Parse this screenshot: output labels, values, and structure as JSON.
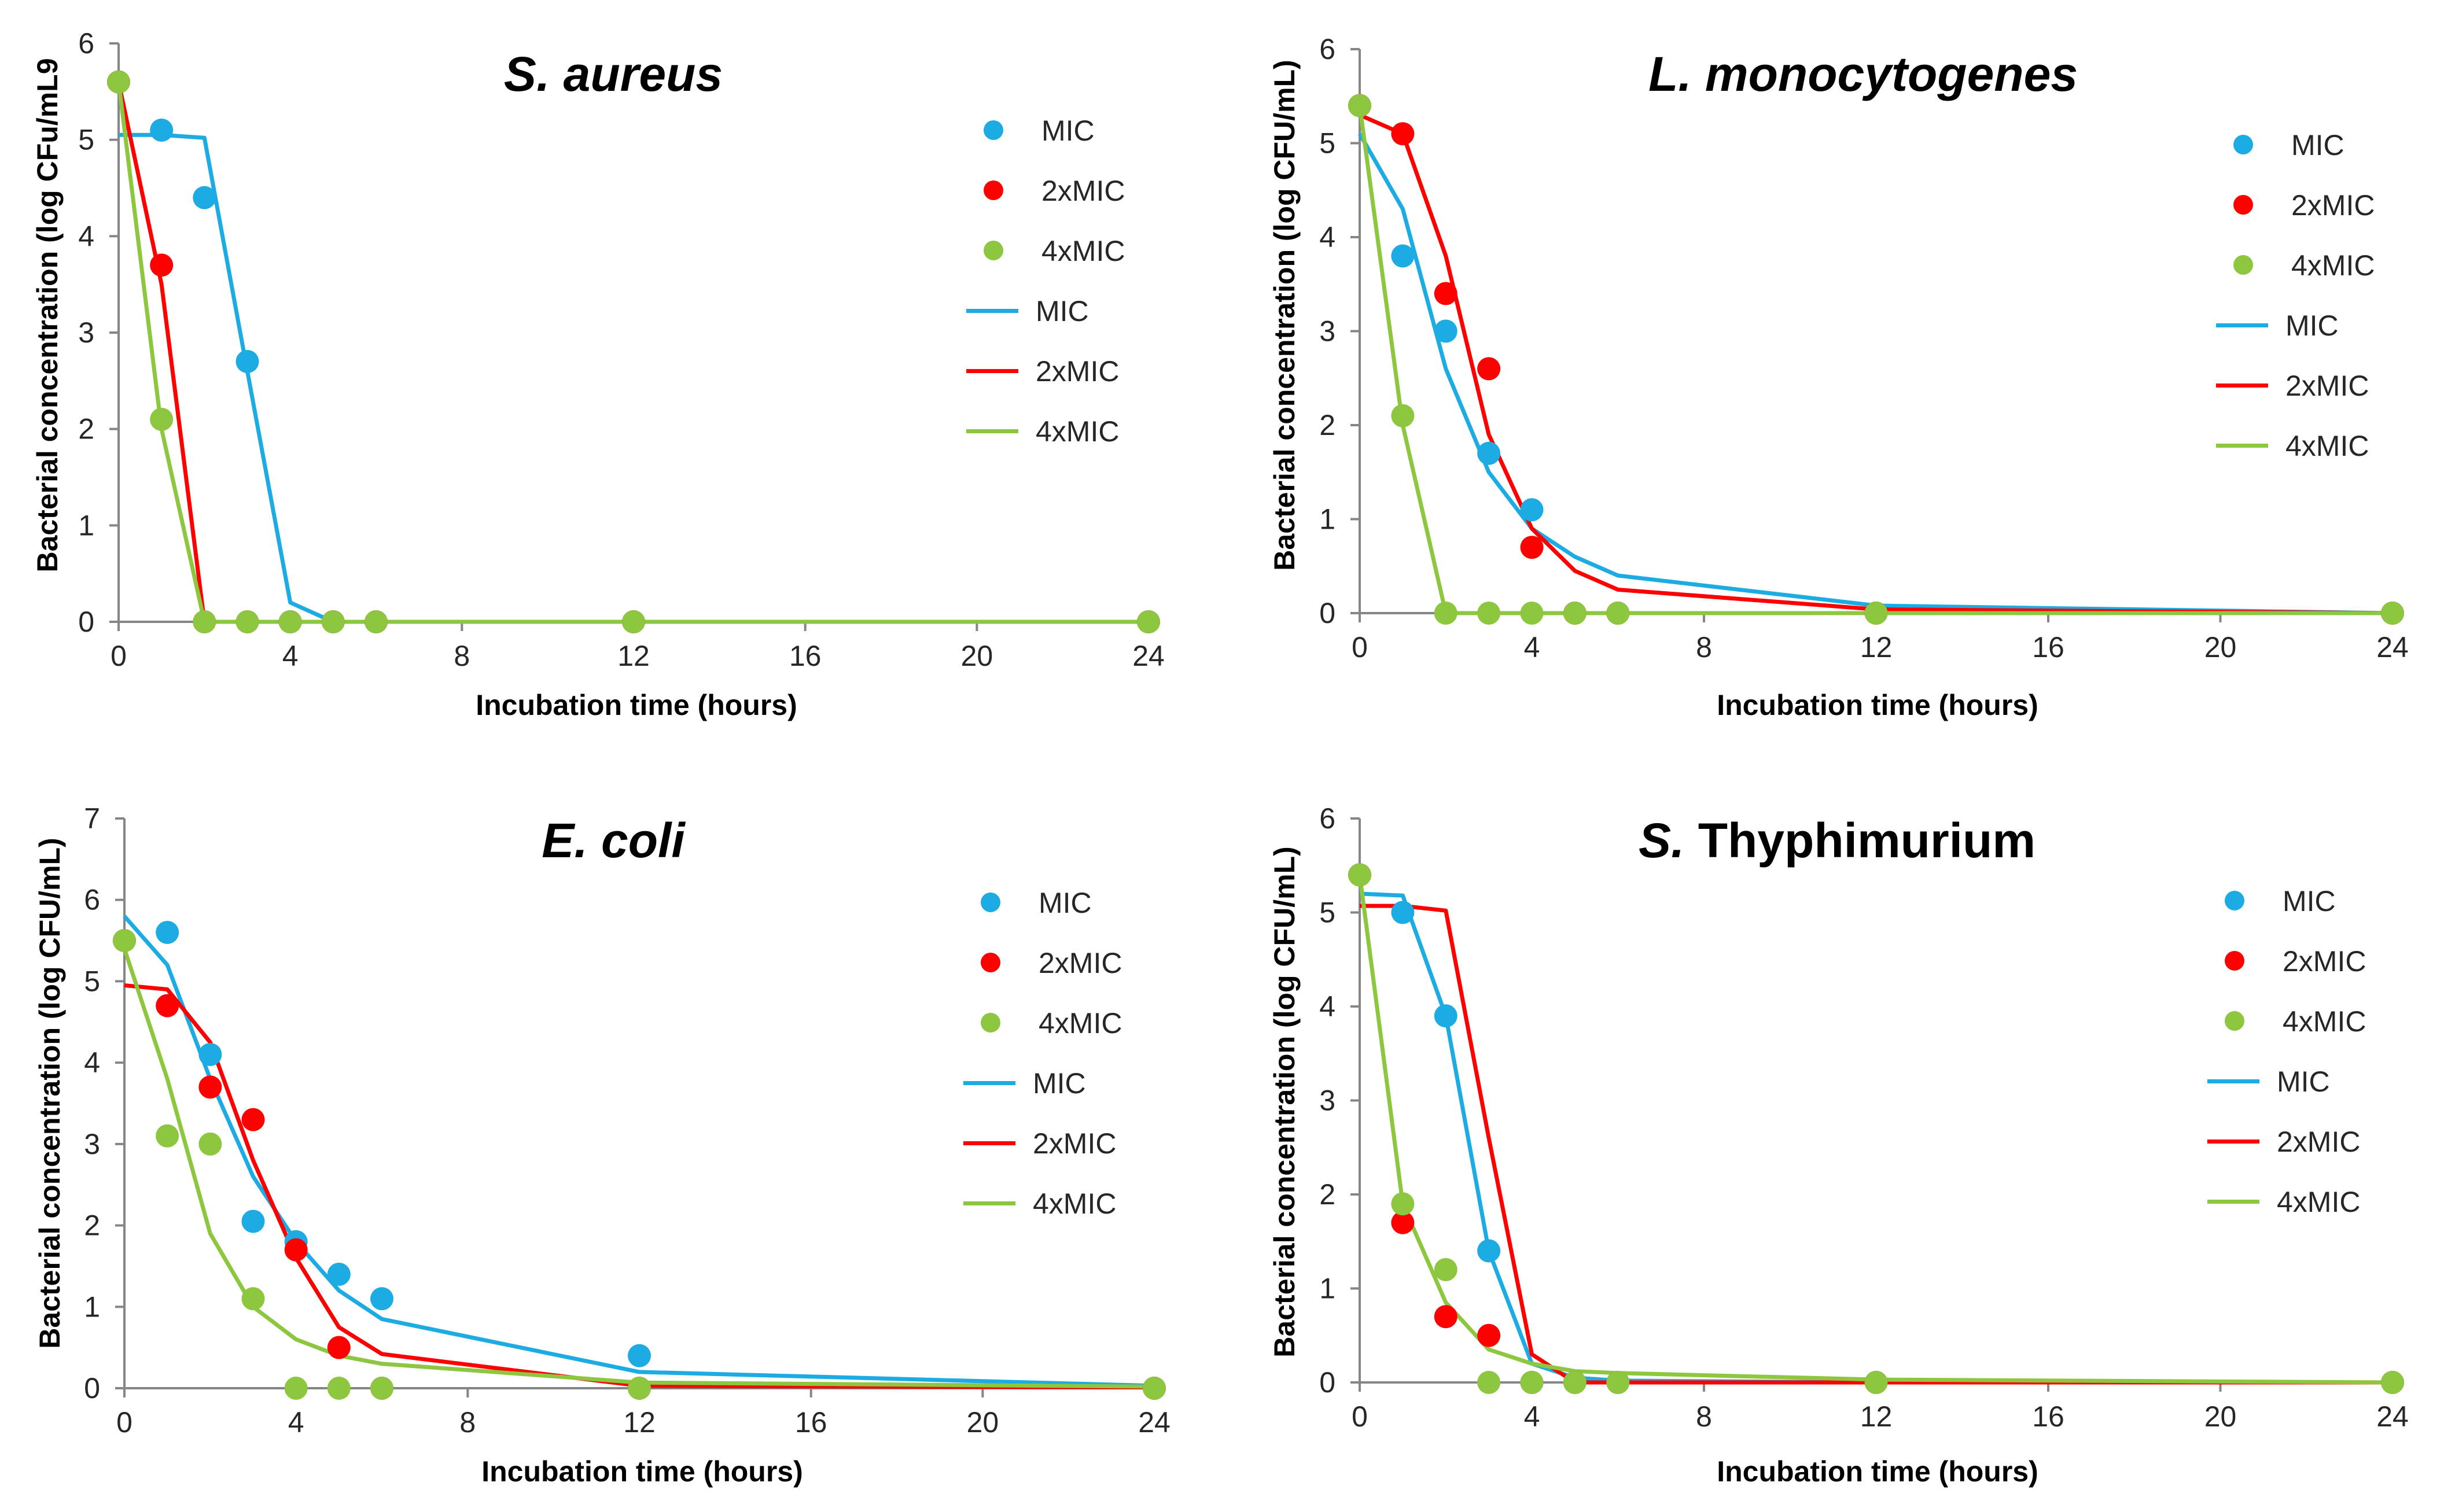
{
  "colors": {
    "MIC": "#1cabe2",
    "2xMIC": "#ff0000",
    "4xMIC": "#8dc63f"
  },
  "chart_data": [
    {
      "type": "line+scatter",
      "title_italic": "S. aureus",
      "title_normal": "",
      "xlabel": "Incubation time (hours)",
      "ylabel": "Bacterial concentration (log CFu/mL9",
      "xlim": [
        0,
        24
      ],
      "ylim": [
        0,
        6
      ],
      "xticks": [
        0,
        4,
        8,
        12,
        16,
        20,
        24
      ],
      "yticks": [
        0,
        1,
        2,
        3,
        4,
        5,
        6
      ],
      "legend": [
        "MIC",
        "2xMIC",
        "4xMIC",
        "MIC",
        "2xMIC",
        "4xMIC"
      ],
      "series": [
        {
          "name": "MIC",
          "kind": "points",
          "x": [
            0,
            1,
            2,
            3,
            4,
            5,
            6,
            12,
            24
          ],
          "y": [
            5.6,
            5.1,
            4.4,
            2.7,
            0,
            0,
            0,
            0,
            0
          ]
        },
        {
          "name": "2xMIC",
          "kind": "points",
          "x": [
            0,
            1,
            2,
            3,
            4,
            5,
            6,
            12,
            24
          ],
          "y": [
            5.6,
            3.7,
            0,
            0,
            0,
            0,
            0,
            0,
            0
          ]
        },
        {
          "name": "4xMIC",
          "kind": "points",
          "x": [
            0,
            1,
            2,
            3,
            4,
            5,
            6,
            12,
            24
          ],
          "y": [
            5.6,
            2.1,
            0,
            0,
            0,
            0,
            0,
            0,
            0
          ]
        },
        {
          "name": "MIC",
          "kind": "line",
          "x": [
            0,
            1,
            2,
            3,
            4,
            5,
            6,
            12,
            24
          ],
          "y": [
            5.05,
            5.05,
            5.02,
            2.6,
            0.2,
            0,
            0,
            0,
            0
          ]
        },
        {
          "name": "2xMIC",
          "kind": "line",
          "x": [
            0,
            1,
            2,
            3,
            4,
            5,
            6,
            12,
            24
          ],
          "y": [
            5.6,
            3.5,
            0,
            0,
            0,
            0,
            0,
            0,
            0
          ]
        },
        {
          "name": "4xMIC",
          "kind": "line",
          "x": [
            0,
            1,
            2,
            3,
            4,
            5,
            6,
            12,
            24
          ],
          "y": [
            5.6,
            2.0,
            0,
            0,
            0,
            0,
            0,
            0,
            0
          ]
        }
      ]
    },
    {
      "type": "line+scatter",
      "title_italic": "L. monocytogenes",
      "title_normal": "",
      "xlabel": "Incubation time (hours)",
      "ylabel": "Bacterial concentration (log CFU/mL)",
      "xlim": [
        0,
        24
      ],
      "ylim": [
        0,
        6
      ],
      "xticks": [
        0,
        4,
        8,
        12,
        16,
        20,
        24
      ],
      "yticks": [
        0,
        1,
        2,
        3,
        4,
        5,
        6
      ],
      "legend": [
        "MIC",
        "2xMIC",
        "4xMIC",
        "MIC",
        "2xMIC",
        "4xMIC"
      ],
      "series": [
        {
          "name": "MIC",
          "kind": "points",
          "x": [
            0,
            1,
            2,
            3,
            4,
            5,
            6,
            12,
            24
          ],
          "y": [
            5.4,
            3.8,
            3.0,
            1.7,
            1.1,
            0,
            0,
            0,
            0
          ]
        },
        {
          "name": "2xMIC",
          "kind": "points",
          "x": [
            0,
            1,
            2,
            3,
            4,
            5,
            6,
            12,
            24
          ],
          "y": [
            5.4,
            5.1,
            3.4,
            2.6,
            0.7,
            0,
            0,
            0,
            0
          ]
        },
        {
          "name": "4xMIC",
          "kind": "points",
          "x": [
            0,
            1,
            2,
            3,
            4,
            5,
            6,
            12,
            24
          ],
          "y": [
            5.4,
            2.1,
            0,
            0,
            0,
            0,
            0,
            0,
            0
          ]
        },
        {
          "name": "MIC",
          "kind": "line",
          "x": [
            0,
            1,
            2,
            3,
            4,
            5,
            6,
            12,
            24
          ],
          "y": [
            5.1,
            4.3,
            2.6,
            1.5,
            0.9,
            0.6,
            0.4,
            0.08,
            0
          ]
        },
        {
          "name": "2xMIC",
          "kind": "line",
          "x": [
            0,
            1,
            2,
            3,
            4,
            5,
            6,
            12,
            24
          ],
          "y": [
            5.3,
            5.1,
            3.8,
            1.9,
            0.9,
            0.45,
            0.25,
            0.04,
            0
          ]
        },
        {
          "name": "4xMIC",
          "kind": "line",
          "x": [
            0,
            1,
            2,
            3,
            4,
            5,
            6,
            12,
            24
          ],
          "y": [
            5.4,
            2.0,
            0,
            0,
            0,
            0,
            0,
            0,
            0
          ]
        }
      ]
    },
    {
      "type": "line+scatter",
      "title_italic": "E. coli",
      "title_normal": "",
      "xlabel": "Incubation time (hours)",
      "ylabel": "Bacterial concentration (log CFU/mL)",
      "xlim": [
        0,
        24
      ],
      "ylim": [
        0,
        7
      ],
      "xticks": [
        0,
        4,
        8,
        12,
        16,
        20,
        24
      ],
      "yticks": [
        0,
        1,
        2,
        3,
        4,
        5,
        6,
        7
      ],
      "legend": [
        "MIC",
        "2xMIC",
        "4xMIC",
        "MIC",
        "2xMIC",
        "4xMIC"
      ],
      "series": [
        {
          "name": "MIC",
          "kind": "points",
          "x": [
            0,
            1,
            2,
            3,
            4,
            5,
            6,
            12,
            24
          ],
          "y": [
            5.5,
            5.6,
            4.1,
            2.05,
            1.8,
            1.4,
            1.1,
            0.4,
            0
          ]
        },
        {
          "name": "2xMIC",
          "kind": "points",
          "x": [
            0,
            1,
            2,
            3,
            4,
            5,
            6,
            12,
            24
          ],
          "y": [
            5.5,
            4.7,
            3.7,
            3.3,
            1.7,
            0.5,
            0,
            0,
            0
          ]
        },
        {
          "name": "4xMIC",
          "kind": "points",
          "x": [
            0,
            1,
            2,
            3,
            4,
            5,
            6,
            12,
            24
          ],
          "y": [
            5.5,
            3.1,
            3.0,
            1.1,
            0,
            0,
            0,
            0,
            0
          ]
        },
        {
          "name": "MIC",
          "kind": "line",
          "x": [
            0,
            1,
            2,
            3,
            4,
            5,
            6,
            12,
            24
          ],
          "y": [
            5.8,
            5.2,
            3.8,
            2.6,
            1.8,
            1.2,
            0.85,
            0.2,
            0.03
          ]
        },
        {
          "name": "2xMIC",
          "kind": "line",
          "x": [
            0,
            1,
            2,
            3,
            4,
            5,
            6,
            12,
            24
          ],
          "y": [
            4.95,
            4.9,
            4.25,
            2.8,
            1.6,
            0.75,
            0.42,
            0.03,
            0.01
          ]
        },
        {
          "name": "4xMIC",
          "kind": "line",
          "x": [
            0,
            1,
            2,
            3,
            4,
            5,
            6,
            12,
            24
          ],
          "y": [
            5.4,
            3.8,
            1.9,
            1.0,
            0.6,
            0.4,
            0.3,
            0.07,
            0.02
          ]
        }
      ]
    },
    {
      "type": "line+scatter",
      "title_italic": "S.",
      "title_normal": " Thyphimurium",
      "xlabel": "Incubation time (hours)",
      "ylabel": "Bacterial concentration (log CFU/mL)",
      "xlim": [
        0,
        24
      ],
      "ylim": [
        0,
        6
      ],
      "xticks": [
        0,
        4,
        8,
        12,
        16,
        20,
        24
      ],
      "yticks": [
        0,
        1,
        2,
        3,
        4,
        5,
        6
      ],
      "legend": [
        "MIC",
        "2xMIC",
        "4xMIC",
        "MIC",
        "2xMIC",
        "4xMIC"
      ],
      "series": [
        {
          "name": "MIC",
          "kind": "points",
          "x": [
            0,
            1,
            2,
            3,
            4,
            5,
            6,
            12,
            24
          ],
          "y": [
            5.4,
            5.0,
            3.9,
            1.4,
            0,
            0,
            0,
            0,
            0
          ]
        },
        {
          "name": "2xMIC",
          "kind": "points",
          "x": [
            0,
            1,
            2,
            3,
            4,
            5,
            6,
            12,
            24
          ],
          "y": [
            5.4,
            1.7,
            0.7,
            0.5,
            0,
            0,
            0,
            0,
            0
          ]
        },
        {
          "name": "4xMIC",
          "kind": "points",
          "x": [
            0,
            1,
            2,
            3,
            4,
            5,
            6,
            12,
            24
          ],
          "y": [
            5.4,
            1.9,
            1.2,
            0,
            0,
            0,
            0,
            0,
            0
          ]
        },
        {
          "name": "MIC",
          "kind": "line",
          "x": [
            0,
            1,
            2,
            3,
            4,
            5,
            6,
            12,
            24
          ],
          "y": [
            5.2,
            5.18,
            3.9,
            1.4,
            0.2,
            0.05,
            0.02,
            0,
            0
          ]
        },
        {
          "name": "2xMIC",
          "kind": "line",
          "x": [
            0,
            1,
            2,
            3,
            4,
            5,
            6,
            12,
            24
          ],
          "y": [
            5.07,
            5.07,
            5.02,
            2.6,
            0.3,
            0,
            0,
            0,
            0
          ]
        },
        {
          "name": "4xMIC",
          "kind": "line",
          "x": [
            0,
            1,
            2,
            3,
            4,
            5,
            6,
            12,
            24
          ],
          "y": [
            5.4,
            1.9,
            0.85,
            0.35,
            0.2,
            0.12,
            0.1,
            0.03,
            0
          ]
        }
      ]
    }
  ]
}
